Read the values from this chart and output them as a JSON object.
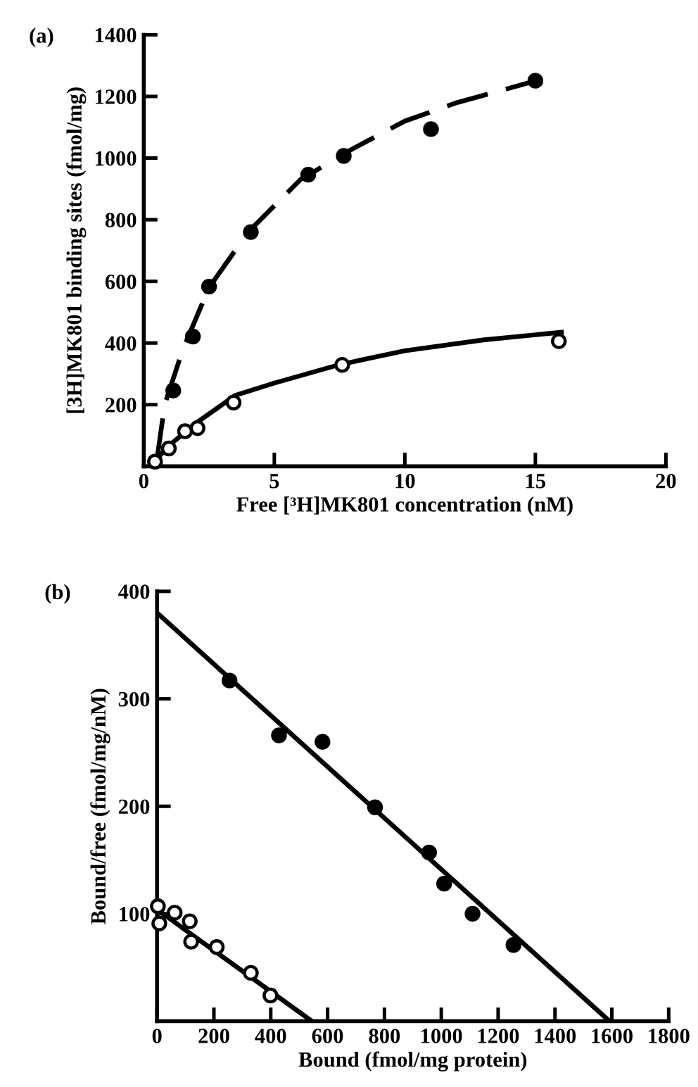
{
  "chart_data": [
    {
      "type": "scatter",
      "title": "(a)",
      "xlabel": "Free [³H]MK801 concentration (nM)",
      "ylabel": "[3H]MK801 binding sites (fmol/mg)",
      "xlim": [
        0,
        20
      ],
      "ylim": [
        0,
        1400
      ],
      "xticks": [
        0,
        5,
        10,
        15,
        20
      ],
      "yticks": [
        {
          "value": 0,
          "label": null
        },
        200,
        400,
        600,
        800,
        1000,
        1200,
        1400
      ],
      "grid": false,
      "legend": false,
      "series": [
        {
          "marker": "circle",
          "color": "#000000",
          "x": [
            1.13,
            1.88,
            2.5,
            4.1,
            6.3,
            7.66,
            11.0,
            15.0
          ],
          "values": [
            246,
            421,
            583,
            760,
            946,
            1007,
            1094,
            1251
          ]
        },
        {
          "marker": "circle",
          "color": "#ffffff",
          "x": [
            0.43,
            0.96,
            1.58,
            2.06,
            3.44,
            7.6,
            15.9
          ],
          "values": [
            15,
            58,
            114,
            124,
            207,
            329,
            406
          ]
        },
        {
          "type": "line",
          "color": "#000000",
          "line_style": "dashed",
          "marker": "none",
          "x": [
            0.5,
            0.8,
            1.5,
            2.5,
            4,
            6,
            8,
            10,
            12,
            15
          ],
          "values": [
            20,
            200,
            380,
            580,
            760,
            930,
            1030,
            1120,
            1180,
            1250
          ]
        },
        {
          "type": "line",
          "color": "#000000",
          "line_style": "solid",
          "marker": "none",
          "x": [
            0.4,
            1,
            2,
            3.5,
            5,
            7.5,
            10,
            13,
            16
          ],
          "values": [
            15,
            70,
            140,
            230,
            270,
            330,
            375,
            410,
            435
          ]
        }
      ]
    },
    {
      "type": "scatter",
      "title": "(b)",
      "xlabel": "Bound (fmol/mg protein)",
      "ylabel": "Bound/free (fmol/mg/nM)",
      "xlim": [
        0,
        1800
      ],
      "ylim": [
        0,
        400
      ],
      "xticks": [
        0,
        200,
        400,
        600,
        800,
        1000,
        1200,
        1400,
        1600,
        1800
      ],
      "yticks": [
        100,
        200,
        300,
        400
      ],
      "grid": false,
      "legend": false,
      "series": [
        {
          "marker": "circle",
          "color": "#000000",
          "x": [
            255,
            429,
            582,
            767,
            957,
            1010,
            1110,
            1254
          ],
          "values": [
            317,
            266,
            260,
            199,
            157,
            128,
            100,
            71
          ]
        },
        {
          "marker": "circle",
          "color": "#ffffff",
          "x": [
            3,
            8,
            62,
            115,
            120,
            210,
            330,
            399
          ],
          "values": [
            107,
            91,
            101,
            93,
            74,
            69,
            45,
            24
          ]
        },
        {
          "type": "line",
          "color": "#000000",
          "line_style": "solid",
          "marker": "none",
          "x": [
            0,
            1592
          ],
          "values": [
            380,
            0
          ]
        },
        {
          "type": "line",
          "color": "#000000",
          "line_style": "solid",
          "marker": "none",
          "x": [
            0,
            545
          ],
          "values": [
            104,
            0
          ]
        }
      ]
    }
  ]
}
